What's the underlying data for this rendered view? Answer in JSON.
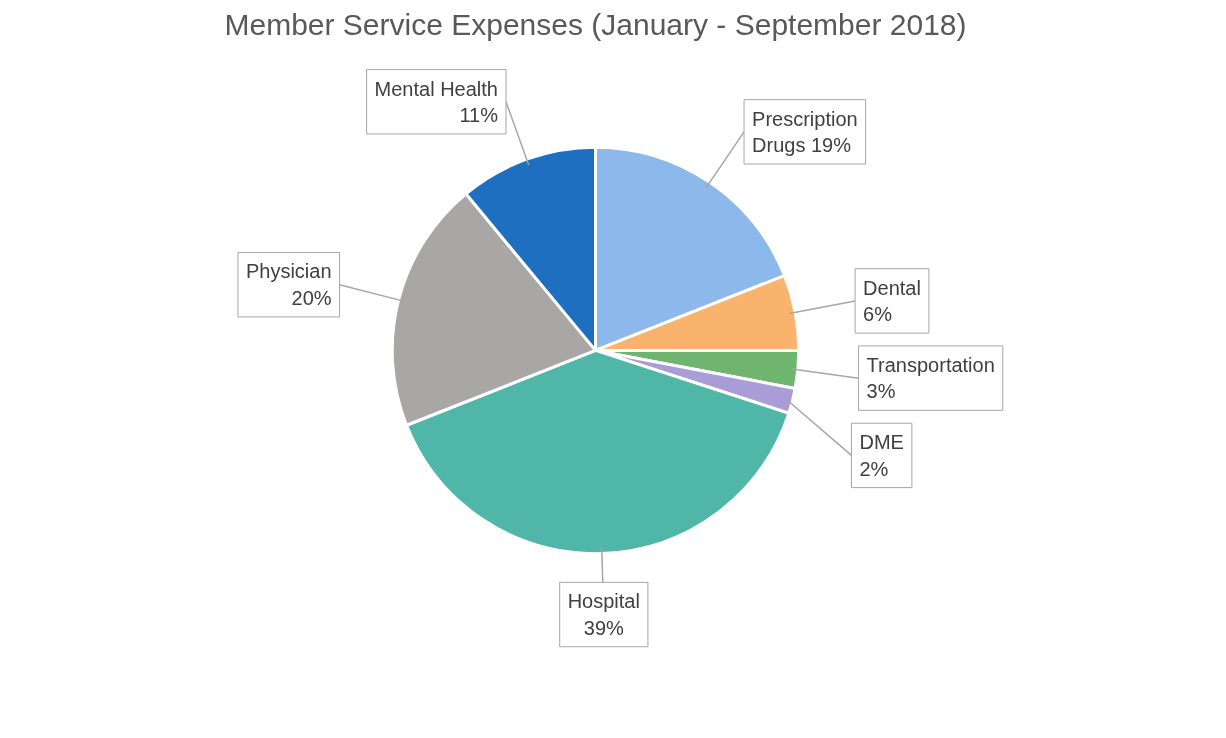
{
  "chart_data": {
    "type": "pie",
    "title": "Member Service Expenses (January - September 2018)",
    "categories": [
      "Prescription Drugs",
      "Dental",
      "Transportation",
      "DME",
      "Hospital",
      "Physician",
      "Mental Health"
    ],
    "values": [
      19,
      6,
      3,
      2,
      39,
      20,
      11
    ],
    "value_labels": [
      "19%",
      "6%",
      "3%",
      "2%",
      "39%",
      "20%",
      "11%"
    ],
    "colors": [
      "#8db8eb",
      "#f9b36c",
      "#6fb46f",
      "#a99dd8",
      "#4fb6a8",
      "#a9a6a6",
      "#1f6fc0"
    ]
  }
}
